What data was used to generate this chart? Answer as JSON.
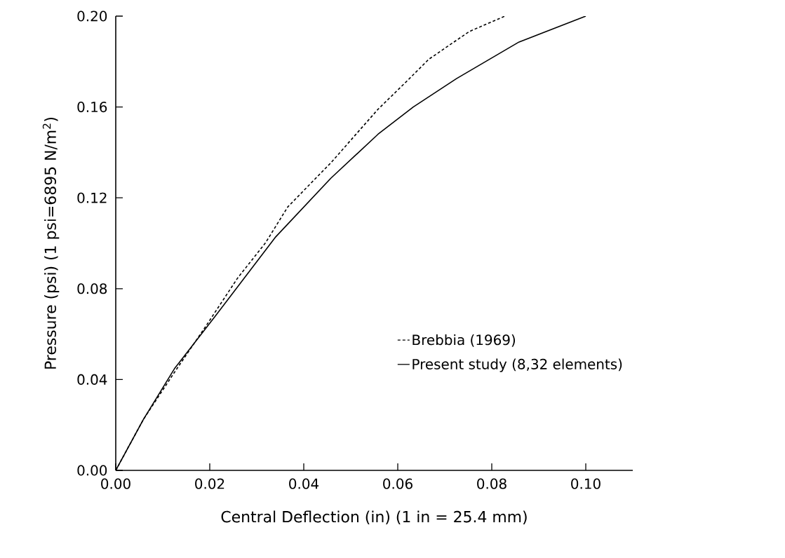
{
  "chart_data": {
    "type": "line",
    "xlabel": "Central Deflection (in)  (1 in = 25.4 mm)",
    "ylabel": "Pressure (psi)   (1 psi=6895 N/m$^{2}$)",
    "xlim": [
      0,
      0.11
    ],
    "ylim": [
      0,
      0.2
    ],
    "xticks": [
      {
        "value": 0,
        "label": "0.00"
      },
      {
        "value": 0.02,
        "label": "0.02"
      },
      {
        "value": 0.04,
        "label": "0.04"
      },
      {
        "value": 0.06,
        "label": "0.06"
      },
      {
        "value": 0.08,
        "label": "0.08"
      },
      {
        "value": 0.1,
        "label": "0.10"
      }
    ],
    "yticks": [
      {
        "value": 0,
        "label": "0.00"
      },
      {
        "value": 0.04,
        "label": "0.04"
      },
      {
        "value": 0.08,
        "label": "0.08"
      },
      {
        "value": 0.12,
        "label": "0.12"
      },
      {
        "value": 0.16,
        "label": "0.16"
      },
      {
        "value": 0.2,
        "label": "0.20"
      }
    ],
    "legend": "right",
    "grid": false,
    "marker": "none",
    "series": [
      {
        "name": "Brebbia (1969)",
        "color": "#000000",
        "line_style": "dashed",
        "x": [
          0,
          0.0059,
          0.0125,
          0.0193,
          0.0259,
          0.0319,
          0.0366,
          0.0458,
          0.0558,
          0.0619,
          0.0666,
          0.0752,
          0.0828
        ],
        "values": [
          0,
          0.0225,
          0.0432,
          0.0639,
          0.0846,
          0.1003,
          0.116,
          0.1355,
          0.159,
          0.1713,
          0.181,
          0.1932,
          0.2
        ]
      },
      {
        "name": "Present study (8,32 elements)",
        "color": "#000000",
        "line_style": "solid",
        "x": [
          0,
          0.0059,
          0.0125,
          0.0212,
          0.0339,
          0.0458,
          0.0558,
          0.0633,
          0.0725,
          0.0858,
          0.1
        ],
        "values": [
          0,
          0.0225,
          0.0448,
          0.068,
          0.1025,
          0.1287,
          0.148,
          0.16,
          0.1725,
          0.1886,
          0.2
        ]
      }
    ]
  }
}
